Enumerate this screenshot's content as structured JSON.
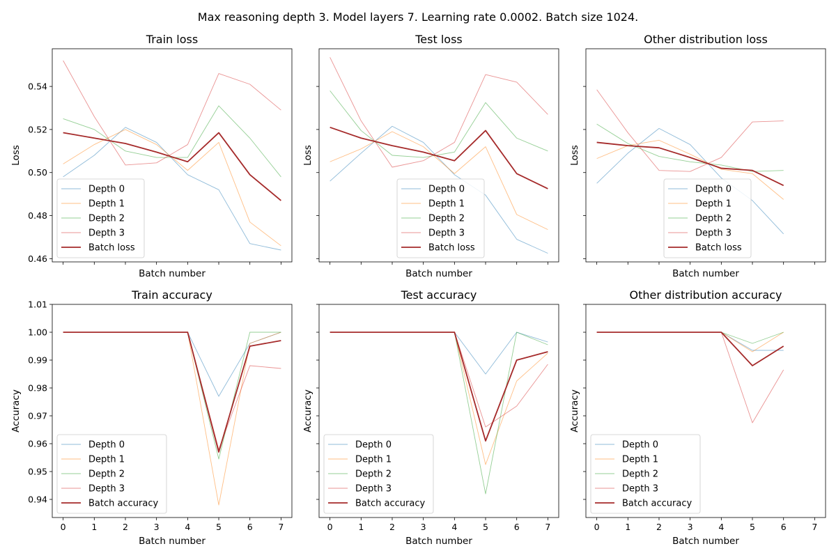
{
  "figure": {
    "suptitle": "Max reasoning depth 3. Model layers 7. Learning rate 0.0002. Batch size 1024."
  },
  "chart_data": [
    {
      "type": "line",
      "title": "Train loss",
      "xlabel": "Batch number",
      "ylabel": "Loss",
      "xlim": [
        -0.35,
        7.35
      ],
      "ylim": [
        0.4585,
        0.5575
      ],
      "xticks": [
        0,
        1,
        2,
        3,
        4,
        5,
        6,
        7
      ],
      "xtick_labels_visible": false,
      "yticks": [
        0.46,
        0.48,
        0.5,
        0.52,
        0.54
      ],
      "ytick_labels": [
        "0.46",
        "0.48",
        "0.50",
        "0.52",
        "0.54"
      ],
      "legend": "lower-left",
      "series": [
        {
          "name": "Depth 0",
          "color": "#1f77b4",
          "role": "depth",
          "x": [
            0,
            1,
            2,
            3,
            4,
            5,
            6,
            7
          ],
          "values": [
            0.498,
            0.508,
            0.521,
            0.514,
            0.499,
            0.492,
            0.467,
            0.464
          ]
        },
        {
          "name": "Depth 1",
          "color": "#ff7f0e",
          "role": "depth",
          "x": [
            0,
            1,
            2,
            3,
            4,
            5,
            6,
            7
          ],
          "values": [
            0.504,
            0.513,
            0.52,
            0.513,
            0.501,
            0.514,
            0.477,
            0.466
          ]
        },
        {
          "name": "Depth 2",
          "color": "#2ca02c",
          "role": "depth",
          "x": [
            0,
            1,
            2,
            3,
            4,
            5,
            6,
            7
          ],
          "values": [
            0.525,
            0.52,
            0.51,
            0.507,
            0.507,
            0.531,
            0.516,
            0.498
          ]
        },
        {
          "name": "Depth 3",
          "color": "#d62728",
          "role": "depth",
          "x": [
            0,
            1,
            2,
            3,
            4,
            5,
            6,
            7
          ],
          "values": [
            0.552,
            0.526,
            0.5035,
            0.5045,
            0.513,
            0.546,
            0.541,
            0.529
          ]
        },
        {
          "name": "Batch loss",
          "color": "#a52a2a",
          "role": "batch",
          "x": [
            0,
            1,
            2,
            3,
            4,
            5,
            6,
            7
          ],
          "values": [
            0.5185,
            0.516,
            0.5135,
            0.5095,
            0.505,
            0.5185,
            0.499,
            0.487
          ]
        }
      ]
    },
    {
      "type": "line",
      "title": "Test loss",
      "xlabel": "Batch number",
      "ylabel": "Loss",
      "xlim": [
        -0.35,
        7.35
      ],
      "ylim": [
        0.4585,
        0.5575
      ],
      "xticks": [
        0,
        1,
        2,
        3,
        4,
        5,
        6,
        7
      ],
      "xtick_labels_visible": false,
      "yticks": [
        0.46,
        0.48,
        0.5,
        0.52,
        0.54
      ],
      "ytick_labels": [
        "",
        "",
        "",
        "",
        ""
      ],
      "legend": "lower-center",
      "series": [
        {
          "name": "Depth 0",
          "color": "#1f77b4",
          "role": "depth",
          "x": [
            0,
            1,
            2,
            3,
            4,
            5,
            6,
            7
          ],
          "values": [
            0.496,
            0.509,
            0.5215,
            0.514,
            0.499,
            0.4895,
            0.469,
            0.4625
          ]
        },
        {
          "name": "Depth 1",
          "color": "#ff7f0e",
          "role": "depth",
          "x": [
            0,
            1,
            2,
            3,
            4,
            5,
            6,
            7
          ],
          "values": [
            0.505,
            0.511,
            0.519,
            0.512,
            0.4995,
            0.512,
            0.4805,
            0.4735
          ]
        },
        {
          "name": "Depth 2",
          "color": "#2ca02c",
          "role": "depth",
          "x": [
            0,
            1,
            2,
            3,
            4,
            5,
            6,
            7
          ],
          "values": [
            0.538,
            0.5195,
            0.508,
            0.507,
            0.5095,
            0.5325,
            0.516,
            0.51
          ]
        },
        {
          "name": "Depth 3",
          "color": "#d62728",
          "role": "depth",
          "x": [
            0,
            1,
            2,
            3,
            4,
            5,
            6,
            7
          ],
          "values": [
            0.5535,
            0.524,
            0.5025,
            0.5055,
            0.514,
            0.5455,
            0.542,
            0.527
          ]
        },
        {
          "name": "Batch loss",
          "color": "#a52a2a",
          "role": "batch",
          "x": [
            0,
            1,
            2,
            3,
            4,
            5,
            6,
            7
          ],
          "values": [
            0.521,
            0.516,
            0.5125,
            0.5095,
            0.5055,
            0.5195,
            0.4995,
            0.4925
          ]
        }
      ]
    },
    {
      "type": "line",
      "title": "Other distribution loss",
      "xlabel": "Batch number",
      "ylabel": "Loss",
      "xlim": [
        -0.35,
        7.35
      ],
      "ylim": [
        0.4585,
        0.5575
      ],
      "xticks": [
        0,
        1,
        2,
        3,
        4,
        5,
        6,
        7
      ],
      "xtick_labels_visible": false,
      "yticks": [
        0.46,
        0.48,
        0.5,
        0.52,
        0.54
      ],
      "ytick_labels": [
        "",
        "",
        "",
        "",
        ""
      ],
      "legend": "lower-center",
      "series": [
        {
          "name": "Depth 0",
          "color": "#1f77b4",
          "role": "depth",
          "x": [
            0,
            1,
            2,
            3,
            4,
            5,
            6
          ],
          "values": [
            0.495,
            0.509,
            0.5205,
            0.513,
            0.4975,
            0.487,
            0.4715
          ]
        },
        {
          "name": "Depth 1",
          "color": "#ff7f0e",
          "role": "depth",
          "x": [
            0,
            1,
            2,
            3,
            4,
            5,
            6
          ],
          "values": [
            0.5065,
            0.5125,
            0.515,
            0.5085,
            0.5015,
            0.4995,
            0.4875
          ]
        },
        {
          "name": "Depth 2",
          "color": "#2ca02c",
          "role": "depth",
          "x": [
            0,
            1,
            2,
            3,
            4,
            5,
            6
          ],
          "values": [
            0.5225,
            0.5135,
            0.5075,
            0.505,
            0.5035,
            0.5005,
            0.501
          ]
        },
        {
          "name": "Depth 3",
          "color": "#d62728",
          "role": "depth",
          "x": [
            0,
            1,
            2,
            3,
            4,
            5,
            6
          ],
          "values": [
            0.5385,
            0.5185,
            0.501,
            0.5005,
            0.507,
            0.5235,
            0.524
          ]
        },
        {
          "name": "Batch loss",
          "color": "#a52a2a",
          "role": "batch",
          "x": [
            0,
            1,
            2,
            3,
            4,
            5,
            6
          ],
          "values": [
            0.514,
            0.5125,
            0.5115,
            0.507,
            0.502,
            0.501,
            0.494
          ]
        }
      ]
    },
    {
      "type": "line",
      "title": "Train accuracy",
      "xlabel": "Batch number",
      "ylabel": "Accuracy",
      "xlim": [
        -0.35,
        7.35
      ],
      "ylim": [
        0.9335,
        1.01
      ],
      "xticks": [
        0,
        1,
        2,
        3,
        4,
        5,
        6,
        7
      ],
      "xtick_labels_visible": true,
      "xtick_labels": [
        "0",
        "1",
        "2",
        "3",
        "4",
        "5",
        "6",
        "7"
      ],
      "yticks": [
        0.94,
        0.95,
        0.96,
        0.97,
        0.98,
        0.99,
        1.0,
        1.01
      ],
      "ytick_labels": [
        "0.94",
        "0.95",
        "0.96",
        "0.97",
        "0.98",
        "0.99",
        "1.00",
        "1.01"
      ],
      "legend": "lower-left",
      "series": [
        {
          "name": "Depth 0",
          "color": "#1f77b4",
          "role": "depth",
          "x": [
            0,
            1,
            2,
            3,
            4,
            5,
            6,
            7
          ],
          "values": [
            1.0,
            1.0,
            1.0,
            1.0,
            1.0,
            0.977,
            0.996,
            1.0
          ]
        },
        {
          "name": "Depth 1",
          "color": "#ff7f0e",
          "role": "depth",
          "x": [
            0,
            1,
            2,
            3,
            4,
            5,
            6,
            7
          ],
          "values": [
            1.0,
            1.0,
            1.0,
            1.0,
            1.0,
            0.938,
            0.996,
            1.0
          ]
        },
        {
          "name": "Depth 2",
          "color": "#2ca02c",
          "role": "depth",
          "x": [
            0,
            1,
            2,
            3,
            4,
            5,
            6,
            7
          ],
          "values": [
            1.0,
            1.0,
            1.0,
            1.0,
            1.0,
            0.9545,
            1.0,
            1.0
          ]
        },
        {
          "name": "Depth 3",
          "color": "#d62728",
          "role": "depth",
          "x": [
            0,
            1,
            2,
            3,
            4,
            5,
            6,
            7
          ],
          "values": [
            1.0,
            1.0,
            1.0,
            1.0,
            1.0,
            0.958,
            0.988,
            0.987
          ]
        },
        {
          "name": "Batch accuracy",
          "color": "#a52a2a",
          "role": "batch",
          "x": [
            0,
            1,
            2,
            3,
            4,
            5,
            6,
            7
          ],
          "values": [
            1.0,
            1.0,
            1.0,
            1.0,
            1.0,
            0.957,
            0.995,
            0.997
          ]
        }
      ]
    },
    {
      "type": "line",
      "title": "Test accuracy",
      "xlabel": "Batch number",
      "ylabel": "Accuracy",
      "xlim": [
        -0.35,
        7.35
      ],
      "ylim": [
        0.9335,
        1.01
      ],
      "xticks": [
        0,
        1,
        2,
        3,
        4,
        5,
        6,
        7
      ],
      "xtick_labels_visible": true,
      "xtick_labels": [
        "0",
        "1",
        "2",
        "3",
        "4",
        "5",
        "6",
        "7"
      ],
      "yticks": [
        0.94,
        0.95,
        0.96,
        0.97,
        0.98,
        0.99,
        1.0,
        1.01
      ],
      "ytick_labels": [
        "",
        "",
        "",
        "",
        "",
        "",
        "",
        ""
      ],
      "legend": "lower-left",
      "series": [
        {
          "name": "Depth 0",
          "color": "#1f77b4",
          "role": "depth",
          "x": [
            0,
            1,
            2,
            3,
            4,
            5,
            6,
            7
          ],
          "values": [
            1.0,
            1.0,
            1.0,
            1.0,
            1.0,
            0.985,
            1.0,
            0.9965
          ]
        },
        {
          "name": "Depth 1",
          "color": "#ff7f0e",
          "role": "depth",
          "x": [
            0,
            1,
            2,
            3,
            4,
            5,
            6,
            7
          ],
          "values": [
            1.0,
            1.0,
            1.0,
            1.0,
            1.0,
            0.9525,
            0.9825,
            0.9925
          ]
        },
        {
          "name": "Depth 2",
          "color": "#2ca02c",
          "role": "depth",
          "x": [
            0,
            1,
            2,
            3,
            4,
            5,
            6,
            7
          ],
          "values": [
            1.0,
            1.0,
            1.0,
            1.0,
            1.0,
            0.942,
            1.0,
            0.9955
          ]
        },
        {
          "name": "Depth 3",
          "color": "#d62728",
          "role": "depth",
          "x": [
            0,
            1,
            2,
            3,
            4,
            5,
            6,
            7
          ],
          "values": [
            1.0,
            1.0,
            1.0,
            1.0,
            1.0,
            0.966,
            0.9735,
            0.9885
          ]
        },
        {
          "name": "Batch accuracy",
          "color": "#a52a2a",
          "role": "batch",
          "x": [
            0,
            1,
            2,
            3,
            4,
            5,
            6,
            7
          ],
          "values": [
            1.0,
            1.0,
            1.0,
            1.0,
            1.0,
            0.961,
            0.99,
            0.993
          ]
        }
      ]
    },
    {
      "type": "line",
      "title": "Other distribution accuracy",
      "xlabel": "Batch number",
      "ylabel": "Accuracy",
      "xlim": [
        -0.35,
        7.35
      ],
      "ylim": [
        0.9335,
        1.01
      ],
      "xticks": [
        0,
        1,
        2,
        3,
        4,
        5,
        6,
        7
      ],
      "xtick_labels_visible": true,
      "xtick_labels": [
        "0",
        "1",
        "2",
        "3",
        "4",
        "5",
        "6",
        "7"
      ],
      "yticks": [
        0.94,
        0.95,
        0.96,
        0.97,
        0.98,
        0.99,
        1.0,
        1.01
      ],
      "ytick_labels": [
        "",
        "",
        "",
        "",
        "",
        "",
        "",
        ""
      ],
      "legend": "lower-left",
      "series": [
        {
          "name": "Depth 0",
          "color": "#1f77b4",
          "role": "depth",
          "x": [
            0,
            1,
            2,
            3,
            4,
            5,
            6
          ],
          "values": [
            1.0,
            1.0,
            1.0,
            1.0,
            1.0,
            0.9935,
            0.9935
          ]
        },
        {
          "name": "Depth 1",
          "color": "#ff7f0e",
          "role": "depth",
          "x": [
            0,
            1,
            2,
            3,
            4,
            5,
            6
          ],
          "values": [
            1.0,
            1.0,
            1.0,
            1.0,
            1.0,
            0.993,
            1.0
          ]
        },
        {
          "name": "Depth 2",
          "color": "#2ca02c",
          "role": "depth",
          "x": [
            0,
            1,
            2,
            3,
            4,
            5,
            6
          ],
          "values": [
            1.0,
            1.0,
            1.0,
            1.0,
            1.0,
            0.996,
            1.0
          ]
        },
        {
          "name": "Depth 3",
          "color": "#d62728",
          "role": "depth",
          "x": [
            0,
            1,
            2,
            3,
            4,
            5,
            6
          ],
          "values": [
            1.0,
            1.0,
            1.0,
            1.0,
            1.0,
            0.9675,
            0.9865
          ]
        },
        {
          "name": "Batch accuracy",
          "color": "#a52a2a",
          "role": "batch",
          "x": [
            0,
            1,
            2,
            3,
            4,
            5,
            6
          ],
          "values": [
            1.0,
            1.0,
            1.0,
            1.0,
            1.0,
            0.988,
            0.995
          ]
        }
      ]
    }
  ]
}
